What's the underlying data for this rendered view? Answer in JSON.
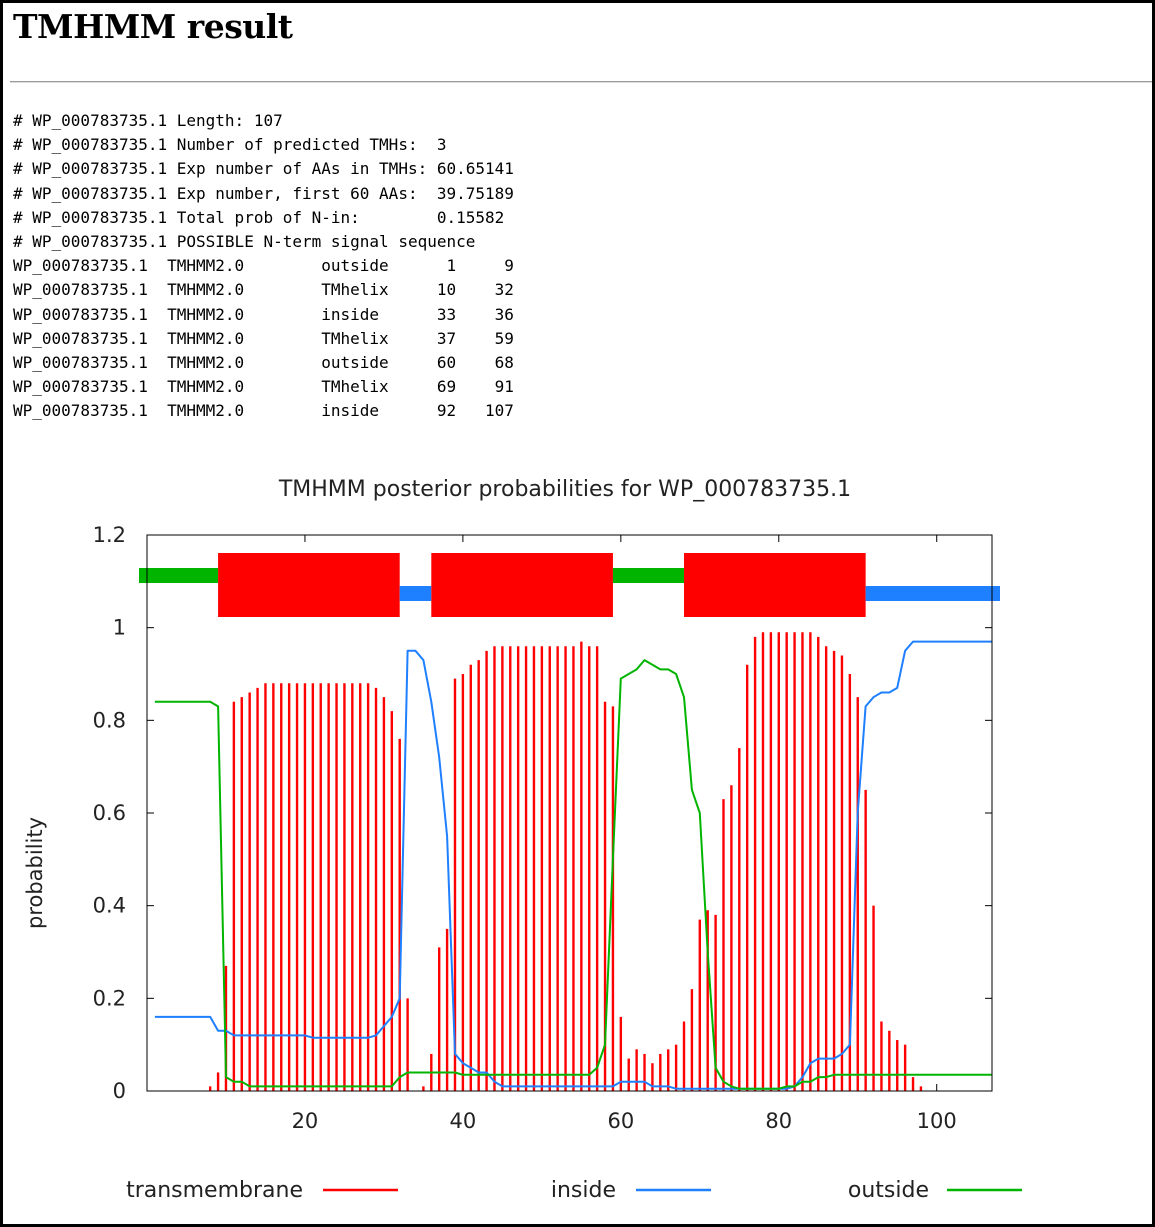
{
  "page": {
    "title": "TMHMM result"
  },
  "output_lines": [
    "# WP_000783735.1 Length: 107",
    "# WP_000783735.1 Number of predicted TMHs:  3",
    "# WP_000783735.1 Exp number of AAs in TMHs: 60.65141",
    "# WP_000783735.1 Exp number, first 60 AAs:  39.75189",
    "# WP_000783735.1 Total prob of N-in:        0.15582",
    "# WP_000783735.1 POSSIBLE N-term signal sequence",
    "WP_000783735.1  TMHMM2.0        outside      1     9",
    "WP_000783735.1  TMHMM2.0        TMhelix     10    32",
    "WP_000783735.1  TMHMM2.0        inside      33    36",
    "WP_000783735.1  TMHMM2.0        TMhelix     37    59",
    "WP_000783735.1  TMHMM2.0        outside     60    68",
    "WP_000783735.1  TMHMM2.0        TMhelix     69    91",
    "WP_000783735.1  TMHMM2.0        inside      92   107"
  ],
  "colors": {
    "transmembrane": "#ff0000",
    "inside": "#1e7fff",
    "outside": "#00b400"
  },
  "chart_data": {
    "type": "line",
    "title": "TMHMM posterior probabilities for WP_000783735.1",
    "xlabel": "",
    "ylabel": "probability",
    "xlim": [
      0,
      107
    ],
    "ylim": [
      0,
      1.2
    ],
    "xticks": [
      20,
      40,
      60,
      80,
      100
    ],
    "yticks": [
      0,
      0.2,
      0.4,
      0.6,
      0.8,
      1,
      1.2
    ],
    "grid": false,
    "legend_position": "bottom",
    "legend": [
      "transmembrane",
      "inside",
      "outside"
    ],
    "topology": [
      {
        "type": "outside",
        "start": 1,
        "end": 9
      },
      {
        "type": "TMhelix",
        "start": 10,
        "end": 32
      },
      {
        "type": "inside",
        "start": 33,
        "end": 36
      },
      {
        "type": "TMhelix",
        "start": 37,
        "end": 59
      },
      {
        "type": "outside",
        "start": 60,
        "end": 68
      },
      {
        "type": "TMhelix",
        "start": 69,
        "end": 91
      },
      {
        "type": "inside",
        "start": 92,
        "end": 107
      }
    ],
    "x": [
      1,
      2,
      3,
      4,
      5,
      6,
      7,
      8,
      9,
      10,
      11,
      12,
      13,
      14,
      15,
      16,
      17,
      18,
      19,
      20,
      21,
      22,
      23,
      24,
      25,
      26,
      27,
      28,
      29,
      30,
      31,
      32,
      33,
      34,
      35,
      36,
      37,
      38,
      39,
      40,
      41,
      42,
      43,
      44,
      45,
      46,
      47,
      48,
      49,
      50,
      51,
      52,
      53,
      54,
      55,
      56,
      57,
      58,
      59,
      60,
      61,
      62,
      63,
      64,
      65,
      66,
      67,
      68,
      69,
      70,
      71,
      72,
      73,
      74,
      75,
      76,
      77,
      78,
      79,
      80,
      81,
      82,
      83,
      84,
      85,
      86,
      87,
      88,
      89,
      90,
      91,
      92,
      93,
      94,
      95,
      96,
      97,
      98,
      99,
      100,
      101,
      102,
      103,
      104,
      105,
      106,
      107
    ],
    "series": [
      {
        "name": "transmembrane",
        "style": "impulses",
        "values": [
          0,
          0,
          0,
          0,
          0,
          0,
          0,
          0.01,
          0.04,
          0.27,
          0.84,
          0.85,
          0.86,
          0.87,
          0.88,
          0.88,
          0.88,
          0.88,
          0.88,
          0.88,
          0.88,
          0.88,
          0.88,
          0.88,
          0.88,
          0.88,
          0.88,
          0.88,
          0.87,
          0.85,
          0.82,
          0.76,
          0.2,
          0,
          0.01,
          0.08,
          0.31,
          0.35,
          0.89,
          0.9,
          0.92,
          0.93,
          0.95,
          0.96,
          0.96,
          0.96,
          0.96,
          0.96,
          0.96,
          0.96,
          0.96,
          0.96,
          0.96,
          0.96,
          0.97,
          0.96,
          0.96,
          0.84,
          0.83,
          0.16,
          0.07,
          0.09,
          0.08,
          0.06,
          0.08,
          0.09,
          0.1,
          0.15,
          0.22,
          0.37,
          0.39,
          0.38,
          0.63,
          0.66,
          0.74,
          0.92,
          0.98,
          0.99,
          0.99,
          0.99,
          0.99,
          0.99,
          0.99,
          0.99,
          0.98,
          0.96,
          0.95,
          0.94,
          0.9,
          0.85,
          0.65,
          0.4,
          0.15,
          0.13,
          0.11,
          0.1,
          0.03,
          0.01,
          0,
          0,
          0,
          0,
          0,
          0,
          0,
          0,
          0
        ]
      },
      {
        "name": "inside",
        "style": "line",
        "values": [
          0.16,
          0.16,
          0.16,
          0.16,
          0.16,
          0.16,
          0.16,
          0.16,
          0.13,
          0.13,
          0.12,
          0.12,
          0.12,
          0.12,
          0.12,
          0.12,
          0.12,
          0.12,
          0.12,
          0.12,
          0.115,
          0.115,
          0.115,
          0.115,
          0.115,
          0.115,
          0.115,
          0.115,
          0.12,
          0.14,
          0.16,
          0.2,
          0.95,
          0.95,
          0.93,
          0.84,
          0.72,
          0.55,
          0.08,
          0.06,
          0.05,
          0.04,
          0.04,
          0.02,
          0.01,
          0.01,
          0.01,
          0.01,
          0.01,
          0.01,
          0.01,
          0.01,
          0.01,
          0.01,
          0.01,
          0.01,
          0.01,
          0.01,
          0.01,
          0.02,
          0.02,
          0.02,
          0.02,
          0.01,
          0.01,
          0.01,
          0.005,
          0.005,
          0.005,
          0.005,
          0.005,
          0.005,
          0.005,
          0.005,
          0.005,
          0.005,
          0.005,
          0.005,
          0.005,
          0.005,
          0.005,
          0.01,
          0.03,
          0.06,
          0.07,
          0.07,
          0.07,
          0.08,
          0.1,
          0.6,
          0.83,
          0.85,
          0.86,
          0.86,
          0.87,
          0.95,
          0.97,
          0.97,
          0.97,
          0.97,
          0.97,
          0.97,
          0.97,
          0.97,
          0.97,
          0.97,
          0.97
        ]
      },
      {
        "name": "outside",
        "style": "line",
        "values": [
          0.84,
          0.84,
          0.84,
          0.84,
          0.84,
          0.84,
          0.84,
          0.84,
          0.83,
          0.03,
          0.02,
          0.02,
          0.01,
          0.01,
          0.01,
          0.01,
          0.01,
          0.01,
          0.01,
          0.01,
          0.01,
          0.01,
          0.01,
          0.01,
          0.01,
          0.01,
          0.01,
          0.01,
          0.01,
          0.01,
          0.01,
          0.03,
          0.04,
          0.04,
          0.04,
          0.04,
          0.04,
          0.04,
          0.04,
          0.035,
          0.035,
          0.035,
          0.035,
          0.035,
          0.035,
          0.035,
          0.035,
          0.035,
          0.035,
          0.035,
          0.035,
          0.035,
          0.035,
          0.035,
          0.035,
          0.035,
          0.05,
          0.1,
          0.5,
          0.89,
          0.9,
          0.91,
          0.93,
          0.92,
          0.91,
          0.91,
          0.9,
          0.85,
          0.65,
          0.6,
          0.3,
          0.05,
          0.02,
          0.01,
          0.005,
          0.005,
          0.005,
          0.005,
          0.005,
          0.005,
          0.01,
          0.01,
          0.02,
          0.02,
          0.03,
          0.03,
          0.035,
          0.035,
          0.035,
          0.035,
          0.035,
          0.035,
          0.035,
          0.035,
          0.035,
          0.035,
          0.035,
          0.035,
          0.035,
          0.035,
          0.035,
          0.035,
          0.035,
          0.035,
          0.035,
          0.035,
          0.035
        ]
      }
    ]
  }
}
